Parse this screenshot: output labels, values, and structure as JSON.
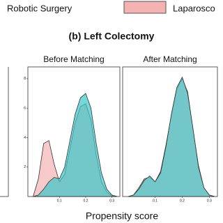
{
  "figure_title": "(b) Left Colectomy",
  "x_label": "Propensity score",
  "chart_data": [
    {
      "type": "area",
      "title": "Before Matching",
      "x": [
        0,
        0.02,
        0.04,
        0.06,
        0.08,
        0.1,
        0.12,
        0.14,
        0.16,
        0.18,
        0.2,
        0.22,
        0.24,
        0.26,
        0.28,
        0.3,
        0.32
      ],
      "series": [
        {
          "name": "Robotic Surgery",
          "color": "#3cc6c9",
          "values": [
            0,
            0.1,
            0.5,
            1.0,
            1.3,
            1.2,
            2.0,
            3.8,
            5.6,
            6.7,
            7.0,
            6.0,
            3.6,
            1.6,
            0.5,
            0.1,
            0
          ]
        },
        {
          "name": "Laparosco",
          "color": "#f4b2b0",
          "values": [
            0,
            1.2,
            3.6,
            3.8,
            2.2,
            1.0,
            1.5,
            3.2,
            5.0,
            6.1,
            6.3,
            5.2,
            2.8,
            1.0,
            0.3,
            0.05,
            0
          ]
        }
      ],
      "xlim": [
        -0.02,
        0.33
      ],
      "ylim": [
        0,
        8.8
      ],
      "xticks": [
        0.1,
        0.2,
        0.3
      ],
      "yticks": [
        2,
        4,
        6,
        8
      ]
    },
    {
      "type": "area",
      "title": "After Matching",
      "x": [
        0,
        0.02,
        0.04,
        0.06,
        0.08,
        0.1,
        0.12,
        0.14,
        0.16,
        0.18,
        0.2,
        0.22,
        0.24,
        0.26,
        0.28,
        0.3,
        0.32
      ],
      "series": [
        {
          "color": "#3cc6c9",
          "values": [
            0,
            0.1,
            0.5,
            1.1,
            1.4,
            1.0,
            1.6,
            3.4,
            5.6,
            7.4,
            8.1,
            7.0,
            4.6,
            2.0,
            0.6,
            0.1,
            0
          ]
        },
        {
          "color": "#f4b2b0",
          "values": [
            0,
            0.1,
            0.6,
            1.2,
            1.3,
            1.0,
            1.7,
            3.5,
            5.5,
            7.3,
            8.0,
            7.1,
            4.5,
            2.1,
            0.6,
            0.1,
            0
          ]
        }
      ],
      "xlim": [
        -0.02,
        0.33
      ],
      "ylim": [
        0,
        8.8
      ],
      "xticks": [
        0.1,
        0.2,
        0.3
      ]
    }
  ]
}
